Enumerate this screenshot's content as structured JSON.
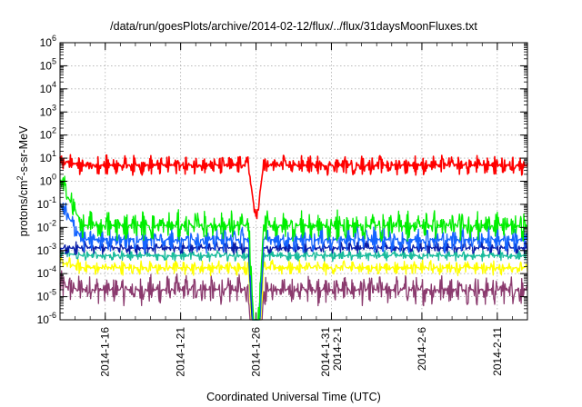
{
  "chart_data": {
    "type": "line",
    "title": "/data/run/goesPlots/archive/2014-02-12/flux/../flux/31daysMoonFluxes.txt",
    "xlabel": "Coordinated Universal Time (UTC)",
    "ylabel": {
      "before": "protons/cm",
      "superscript": "2",
      "after": "-s-sr-MeV"
    },
    "yscale": "log",
    "ylim": [
      1e-06,
      1000000.0
    ],
    "yticks": [
      {
        "base": "10",
        "exp": "-6",
        "value": 1e-06
      },
      {
        "base": "10",
        "exp": "-5",
        "value": 1e-05
      },
      {
        "base": "10",
        "exp": "-4",
        "value": 0.0001
      },
      {
        "base": "10",
        "exp": "-3",
        "value": 0.001
      },
      {
        "base": "10",
        "exp": "-2",
        "value": 0.01
      },
      {
        "base": "10",
        "exp": "-1",
        "value": 0.1
      },
      {
        "base": "10",
        "exp": "0",
        "value": 1
      },
      {
        "base": "10",
        "exp": "1",
        "value": 10
      },
      {
        "base": "10",
        "exp": "2",
        "value": 100
      },
      {
        "base": "10",
        "exp": "3",
        "value": 1000
      },
      {
        "base": "10",
        "exp": "4",
        "value": 10000
      },
      {
        "base": "10",
        "exp": "5",
        "value": 100000
      },
      {
        "base": "10",
        "exp": "6",
        "value": 1000000
      }
    ],
    "xlim": [
      "2014-01-13",
      "2014-02-13"
    ],
    "xticks": [
      {
        "date": "2014-01-16",
        "lines": [
          "2014-1-16"
        ]
      },
      {
        "date": "2014-01-21",
        "lines": [
          "2014-1-21"
        ]
      },
      {
        "date": "2014-01-26",
        "lines": [
          "2014-1-26"
        ]
      },
      {
        "date": "2014-01-31",
        "lines": [
          "2014-1-31",
          "2014-2-1"
        ]
      },
      {
        "date": "2014-02-06",
        "lines": [
          "2014-2-6"
        ]
      },
      {
        "date": "2014-02-11",
        "lines": [
          "2014-2-11"
        ]
      }
    ],
    "grid": true,
    "event": {
      "start": "2014-01-25T12:00",
      "end": "2014-01-26T12:00",
      "dip_date": "2014-01-26"
    },
    "series": [
      {
        "color": "#8b3a6e",
        "start_value": 3e-05,
        "typical": 2e-05,
        "jitter_decades": 0.7
      },
      {
        "color": "#ffff00",
        "start_value": 0.0003,
        "typical": 0.00018,
        "jitter_decades": 0.35
      },
      {
        "color": "#1abc9c",
        "start_value": 0.0008,
        "typical": 0.0006,
        "jitter_decades": 0.25
      },
      {
        "color": "#0a1ea8",
        "start_value": 0.0012,
        "typical": 0.0013,
        "jitter_decades": 0.3
      },
      {
        "color": "#1464ff",
        "start_value": 0.1,
        "typical": 0.003,
        "jitter_decades": 0.6
      },
      {
        "color": "#00ee00",
        "start_value": 1.0,
        "typical": 0.012,
        "jitter_decades": 0.7
      },
      {
        "color": "#ff0000",
        "start_value": 8,
        "typical": 5,
        "jitter_decades": 0.45
      }
    ]
  }
}
